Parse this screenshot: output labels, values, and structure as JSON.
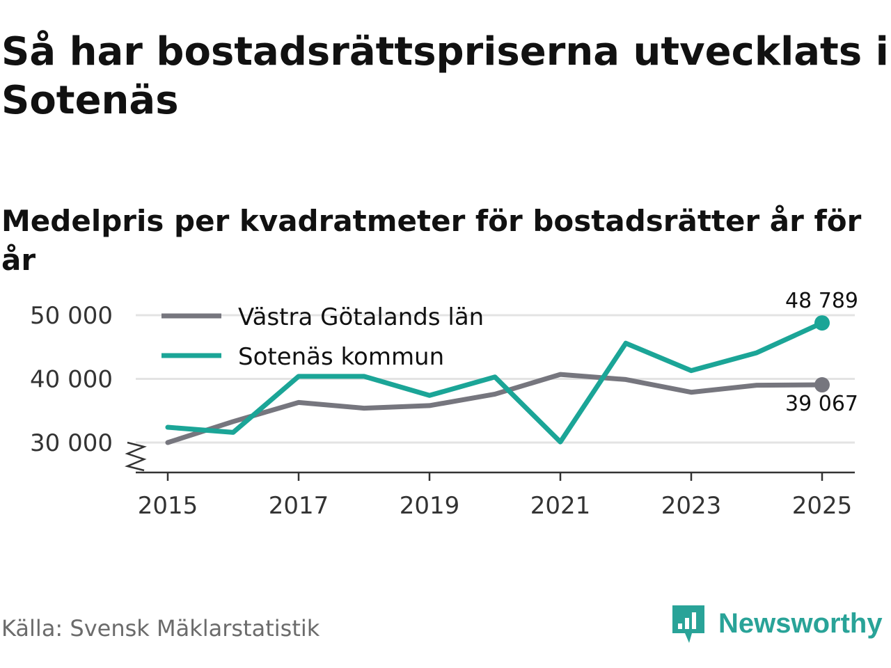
{
  "title": "Så har bostadsrättspriserna utvecklats i Sotenäs",
  "subtitle": "Medelpris per kvadratmeter för bostadsrätter år för år",
  "source": "Källa: Svensk Mäklarstatistik",
  "brand": {
    "name": "Newsworthy",
    "color": "#29a398"
  },
  "colors": {
    "vastra": "#76767e",
    "sotenas": "#1ba597",
    "grid": "#e3e3e3",
    "axis": "#333333"
  },
  "chart_data": {
    "type": "line",
    "x": [
      2015,
      2016,
      2017,
      2018,
      2019,
      2020,
      2021,
      2022,
      2023,
      2024,
      2025
    ],
    "xticks": [
      "2015",
      "2017",
      "2019",
      "2021",
      "2023",
      "2025"
    ],
    "yticks": [
      "30 000",
      "40 000",
      "50 000"
    ],
    "ylim": [
      25300,
      51000
    ],
    "series": [
      {
        "name": "Västra Götalands län",
        "color": "#76767e",
        "values": [
          30000,
          33300,
          36300,
          35400,
          35800,
          37600,
          40700,
          39900,
          37900,
          39000,
          39067
        ]
      },
      {
        "name": "Sotenäs kommun",
        "color": "#1ba597",
        "values": [
          32400,
          31600,
          40400,
          40400,
          37400,
          40300,
          30100,
          45600,
          41300,
          44100,
          48789
        ]
      }
    ],
    "end_labels": [
      "39 067",
      "48 789"
    ],
    "axis_break": true
  }
}
